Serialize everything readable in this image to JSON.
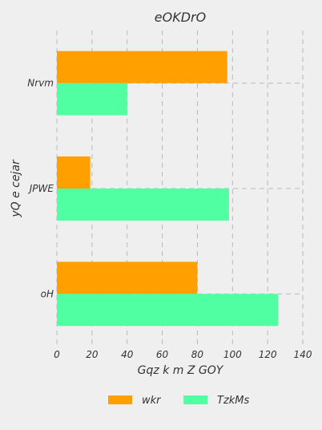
{
  "chart_data": {
    "type": "bar",
    "orientation": "horizontal",
    "title": "eOKDrO",
    "xlabel": "Gqz k m Z GOY",
    "ylabel": "yQ  e cejar",
    "categories": [
      "oH",
      "JPWE",
      "Nrvm"
    ],
    "series": [
      {
        "name": "wkr",
        "color": "#ff9f00",
        "values": [
          80,
          19,
          97
        ]
      },
      {
        "name": "TzkMs",
        "color": "#4fffa1",
        "values": [
          126,
          98,
          40
        ]
      }
    ],
    "xlim": [
      0,
      140
    ],
    "xticks": [
      0,
      20,
      40,
      60,
      80,
      100,
      120,
      140
    ],
    "grid": true,
    "legend_position": "bottom-center",
    "colors": {
      "background": "#efefef",
      "grid": "#b9b9b9",
      "text": "#333333"
    }
  }
}
